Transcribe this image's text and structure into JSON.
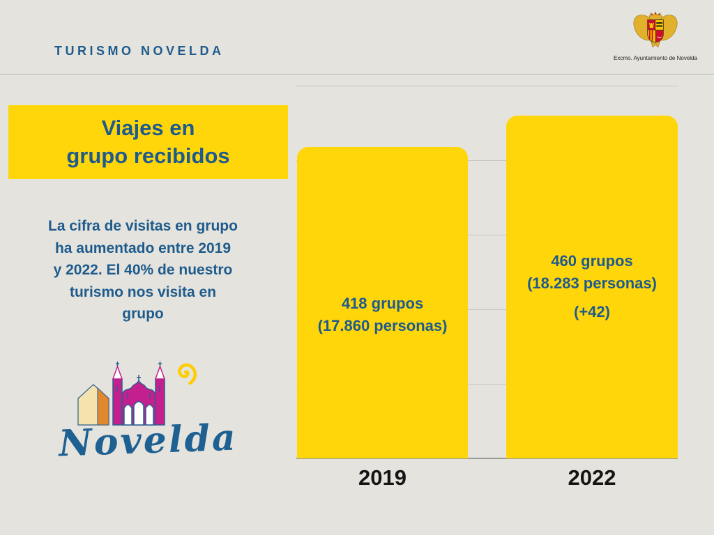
{
  "page": {
    "background": "#E4E3DD"
  },
  "header": {
    "brand": "TURISMO NOVELDA",
    "logo_caption": "Excmo. Ayuntamiento de Novelda"
  },
  "title_box": {
    "line1": "Viajes en",
    "line2": "grupo recibidos",
    "bg_color": "#FFD60A",
    "text_color": "#1E5B8C"
  },
  "description": {
    "lines": [
      "La cifra de visitas en grupo",
      "ha aumentado entre 2019",
      "y 2022. El 40% de nuestro",
      "turismo nos visita en",
      "grupo"
    ]
  },
  "logo": {
    "wordmark": "Novelda"
  },
  "chart_data": {
    "type": "bar",
    "title": "",
    "categories": [
      "2019",
      "2022"
    ],
    "series": [
      {
        "name": "Viajes en grupo recibidos",
        "values": [
          418,
          460
        ]
      }
    ],
    "ylim": [
      0,
      500
    ],
    "gridlines": [
      0,
      100,
      200,
      300,
      400,
      500
    ],
    "grid": true,
    "legend": "none",
    "bar_color": "#FFD60A",
    "label_color": "#1E5B8C",
    "bars": [
      {
        "category": "2019",
        "value": 418,
        "labels": {
          "l1": "418 grupos",
          "l2": "(17.860 personas)"
        }
      },
      {
        "category": "2022",
        "value": 460,
        "labels": {
          "l1": "460 grupos",
          "l2": "(18.283 personas)",
          "l3": "(+42)"
        }
      }
    ]
  }
}
